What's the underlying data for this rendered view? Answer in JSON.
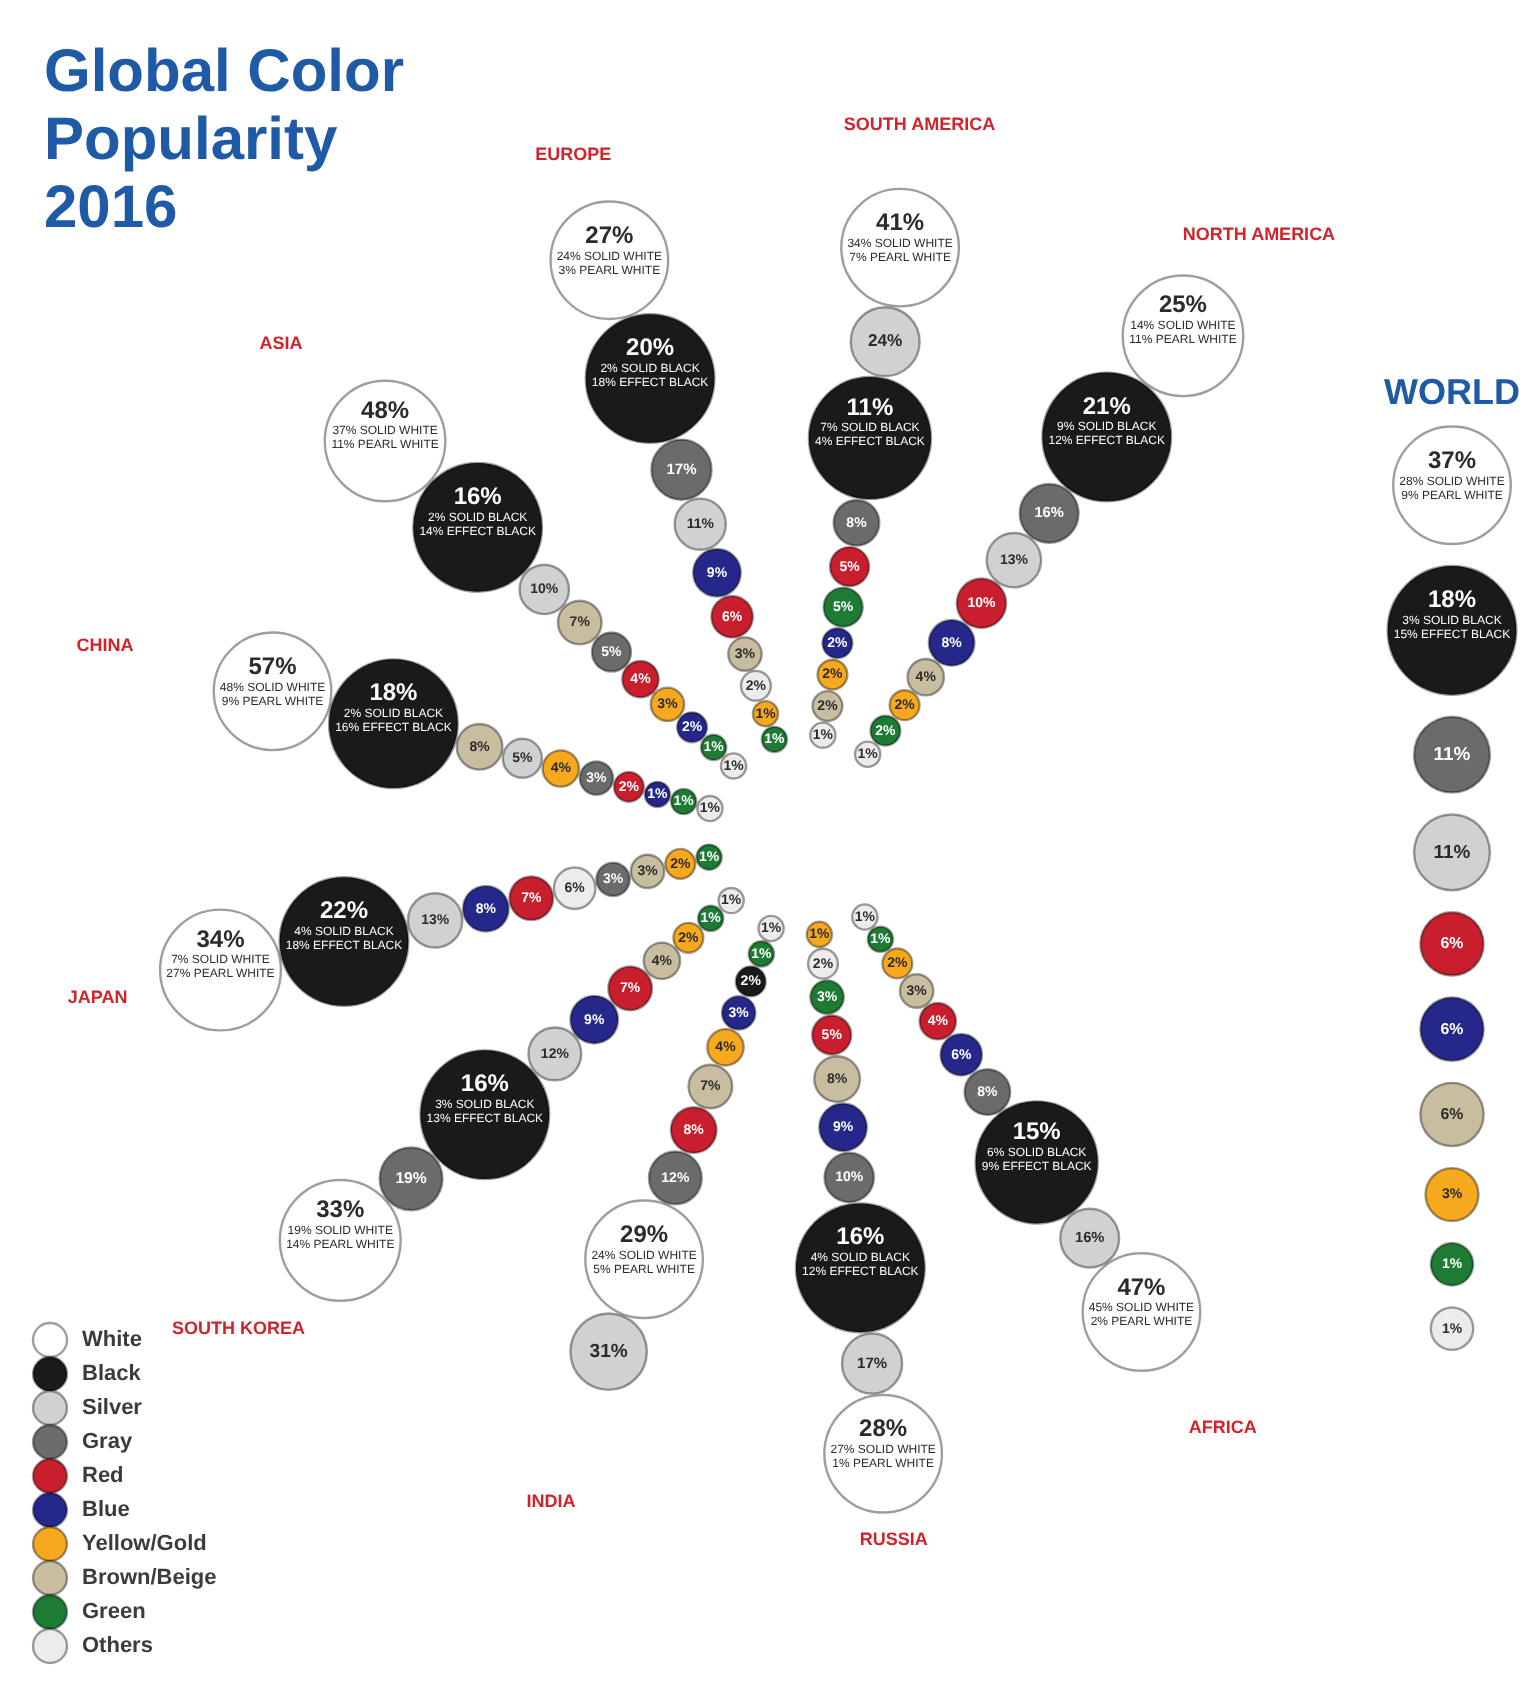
{
  "chart_data": [
    {
      "type": "other",
      "title": "Global Color Popularity 2016",
      "legend": "bottom left",
      "categories": [
        "NORTH AMERICA",
        "SOUTH AMERICA",
        "EUROPE",
        "ASIA",
        "CHINA",
        "JAPAN",
        "SOUTH KOREA",
        "INDIA",
        "RUSSIA",
        "AFRICA"
      ],
      "series": [
        {
          "name": "White",
          "color": "#ffffff",
          "values": [
            25,
            41,
            27,
            48,
            57,
            34,
            33,
            29,
            28,
            47
          ],
          "value_labels": [
            "25%\n14% SOLID WHITE\n11% PEARL WHITE",
            "41%\n34% SOLID WHITE\n7% PEARL WHITE",
            "27%\n24% SOLID WHITE\n3% PEARL WHITE",
            "48%\n37% SOLID WHITE\n11% PEARL WHITE",
            "57%\n48% SOLID WHITE\n9% PEARL WHITE",
            "34%\n7% SOLID WHITE\n27% PEARL WHITE",
            "33%\n19% SOLID WHITE\n14% PEARL WHITE",
            "29%\n24% SOLID WHITE\n5% PEARL WHITE",
            "28%\n27% SOLID WHITE\n1% PEARL WHITE",
            "47%\n45% SOLID WHITE\n2% PEARL WHITE"
          ]
        },
        {
          "name": "Black",
          "color": "#1a1a1a",
          "values": [
            21,
            11,
            20,
            16,
            18,
            22,
            16,
            2,
            16,
            15
          ],
          "value_labels": [
            "21%\n9% SOLID BLACK\n12% EFFECT BLACK",
            "11%\n7% SOLID BLACK\n4% EFFECT BLACK",
            "20%\n2% SOLID BLACK\n18% EFFECT BLACK",
            "16%\n2% SOLID BLACK\n14% EFFECT BLACK",
            "18%\n2% SOLID BLACK\n16% EFFECT BLACK",
            "22%\n4% SOLID BLACK\n18% EFFECT BLACK",
            "16%\n3% SOLID BLACK\n13% EFFECT BLACK",
            "2%",
            "16%\n4% SOLID BLACK\n12% EFFECT BLACK",
            "15%\n6% SOLID BLACK\n9% EFFECT BLACK"
          ]
        },
        {
          "name": "Silver",
          "color": "#d0d1d3",
          "values": [
            13,
            24,
            11,
            10,
            5,
            13,
            12,
            31,
            17,
            16
          ],
          "value_labels": [
            "13%",
            "24%",
            "11%",
            "10%",
            "5%",
            "13%",
            "12%",
            "31%",
            "17%",
            "16%"
          ]
        },
        {
          "name": "Gray",
          "color": "#6a6b6d",
          "values": [
            16,
            8,
            17,
            5,
            3,
            3,
            19,
            12,
            10,
            8
          ],
          "value_labels": [
            "16%",
            "8%",
            "17%",
            "5%",
            "3%",
            "3%",
            "19%",
            "12%",
            "10%",
            "8%"
          ]
        },
        {
          "name": "Red",
          "color": "#c81e2d",
          "values": [
            10,
            5,
            6,
            4,
            2,
            7,
            7,
            8,
            5,
            4
          ],
          "value_labels": [
            "10%",
            "5%",
            "6%",
            "4%",
            "2%",
            "7%",
            "7%",
            "8%",
            "5%",
            "4%"
          ]
        },
        {
          "name": "Blue",
          "color": "#25288a",
          "values": [
            8,
            2,
            9,
            2,
            1,
            8,
            9,
            3,
            9,
            6
          ],
          "value_labels": [
            "8%",
            "2%",
            "9%",
            "2%",
            "1%",
            "8%",
            "9%",
            "3%",
            "9%",
            "6%"
          ]
        },
        {
          "name": "Yellow/Gold",
          "color": "#f6a81f",
          "values": [
            2,
            2,
            1,
            3,
            4,
            2,
            2,
            4,
            1,
            2
          ],
          "value_labels": [
            "2%",
            "2%",
            "1%",
            "3%",
            "4%",
            "2%",
            "2%",
            "4%",
            "1%",
            "2%"
          ]
        },
        {
          "name": "Brown/Beige",
          "color": "#c9bd9f",
          "values": [
            4,
            2,
            3,
            7,
            8,
            3,
            4,
            7,
            8,
            3
          ],
          "value_labels": [
            "4%",
            "2%",
            "3%",
            "7%",
            "8%",
            "3%",
            "4%",
            "7%",
            "8%",
            "3%"
          ]
        },
        {
          "name": "Green",
          "color": "#1d7b34",
          "values": [
            2,
            5,
            1,
            1,
            1,
            1,
            1,
            1,
            3,
            1
          ],
          "value_labels": [
            "2%",
            "5%",
            "1%",
            "1%",
            "1%",
            "1%",
            "1%",
            "1%",
            "3%",
            "1%"
          ]
        },
        {
          "name": "Others",
          "color": "#ececec",
          "values": [
            1,
            1,
            2,
            1,
            1,
            6,
            1,
            1,
            2,
            1
          ],
          "value_labels": [
            "1%",
            "1%",
            "2%",
            "1%",
            "1%",
            "6%",
            "1%",
            "1%",
            "2%",
            "1%"
          ]
        }
      ]
    },
    {
      "type": "other",
      "categories": [
        "WORLD"
      ],
      "series": [
        {
          "color": "#ffffff",
          "values": [
            37
          ],
          "value_labels": [
            "37%\n28% SOLID WHITE\n9% PEARL WHITE"
          ]
        },
        {
          "color": "#1a1a1a",
          "values": [
            18
          ],
          "value_labels": [
            "18%\n3% SOLID BLACK\n15% EFFECT BLACK"
          ]
        },
        {
          "color": "#6a6b6d",
          "values": [
            11
          ],
          "value_labels": [
            "11%"
          ]
        },
        {
          "color": "#d0d1d3",
          "values": [
            11
          ],
          "value_labels": [
            "11%"
          ]
        },
        {
          "color": "#c81e2d",
          "values": [
            6
          ],
          "value_labels": [
            "6%"
          ]
        },
        {
          "color": "#25288a",
          "values": [
            6
          ],
          "value_labels": [
            "6%"
          ]
        },
        {
          "color": "#c9bd9f",
          "values": [
            6
          ],
          "value_labels": [
            "6%"
          ]
        },
        {
          "color": "#f6a81f",
          "values": [
            3
          ],
          "value_labels": [
            "3%"
          ]
        },
        {
          "color": "#1d7b34",
          "values": [
            1
          ],
          "value_labels": [
            "1%"
          ]
        },
        {
          "color": "#ececec",
          "values": [
            1
          ],
          "value_labels": [
            "1%"
          ]
        }
      ]
    }
  ]
}
